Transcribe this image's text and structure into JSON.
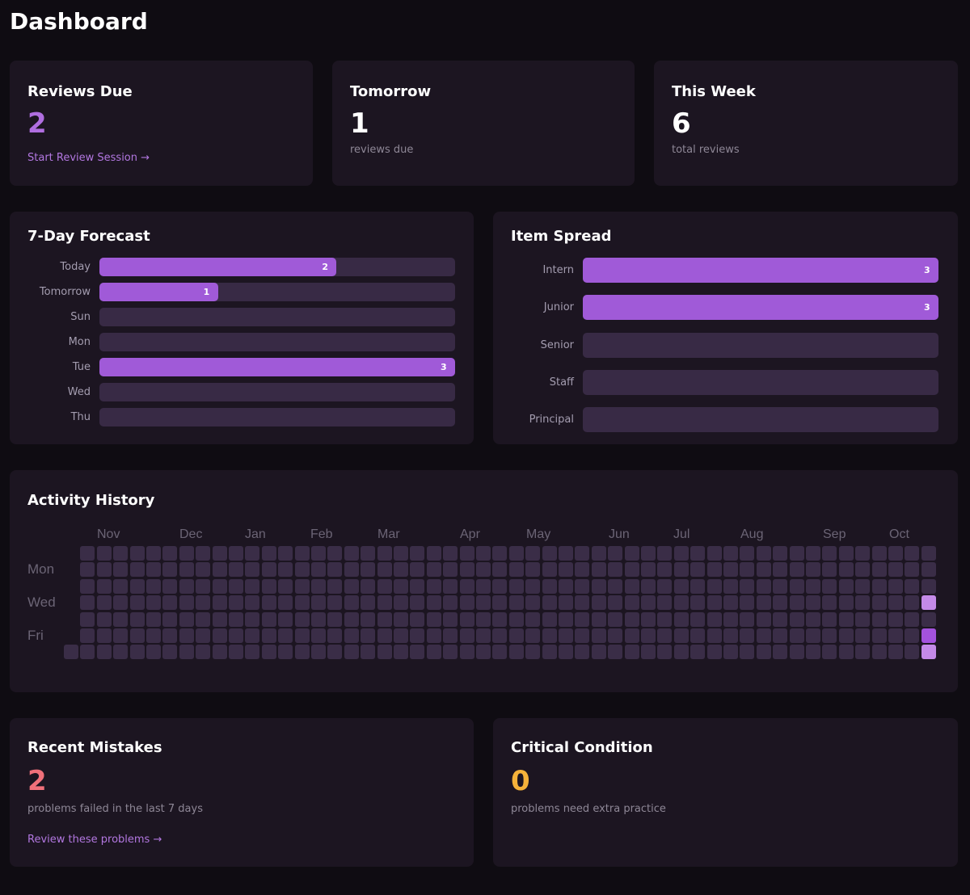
{
  "page_title": "Dashboard",
  "stats": {
    "reviews_due": {
      "title": "Reviews Due",
      "value": "2",
      "link": "Start Review Session →"
    },
    "tomorrow": {
      "title": "Tomorrow",
      "value": "1",
      "caption": "reviews due"
    },
    "this_week": {
      "title": "This Week",
      "value": "6",
      "caption": "total reviews"
    }
  },
  "forecast": {
    "title": "7-Day Forecast",
    "rows": [
      {
        "label": "Today",
        "value": 2
      },
      {
        "label": "Tomorrow",
        "value": 1
      },
      {
        "label": "Sun",
        "value": 0
      },
      {
        "label": "Mon",
        "value": 0
      },
      {
        "label": "Tue",
        "value": 3
      },
      {
        "label": "Wed",
        "value": 0
      },
      {
        "label": "Thu",
        "value": 0
      }
    ],
    "max": 3
  },
  "spread": {
    "title": "Item Spread",
    "rows": [
      {
        "label": "Intern",
        "value": 3
      },
      {
        "label": "Junior",
        "value": 3
      },
      {
        "label": "Senior",
        "value": 0
      },
      {
        "label": "Staff",
        "value": 0
      },
      {
        "label": "Principal",
        "value": 0
      }
    ],
    "max": 3
  },
  "activity": {
    "title": "Activity History",
    "months": [
      "Nov",
      "Dec",
      "Jan",
      "Feb",
      "Mar",
      "Apr",
      "May",
      "Jun",
      "Jul",
      "Aug",
      "Sep",
      "Oct"
    ],
    "day_labels": [
      "Mon",
      "Wed",
      "Fri"
    ],
    "weeks": 53,
    "active_cells": [
      {
        "week": 52,
        "day": 3,
        "level": 1
      },
      {
        "week": 52,
        "day": 5,
        "level": 2
      },
      {
        "week": 52,
        "day": 6,
        "level": 1
      }
    ]
  },
  "mistakes": {
    "title": "Recent Mistakes",
    "value": "2",
    "caption": "problems failed in the last 7 days",
    "link": "Review these problems →"
  },
  "critical": {
    "title": "Critical Condition",
    "value": "0",
    "caption": "problems need extra practice"
  },
  "colors": {
    "accent": "#a05ad8",
    "danger": "#f0707a",
    "warning": "#f5b23a",
    "cell_empty": "#3a2d47",
    "cell_level_1": "#c48ae8",
    "cell_level_2": "#a352dd"
  }
}
